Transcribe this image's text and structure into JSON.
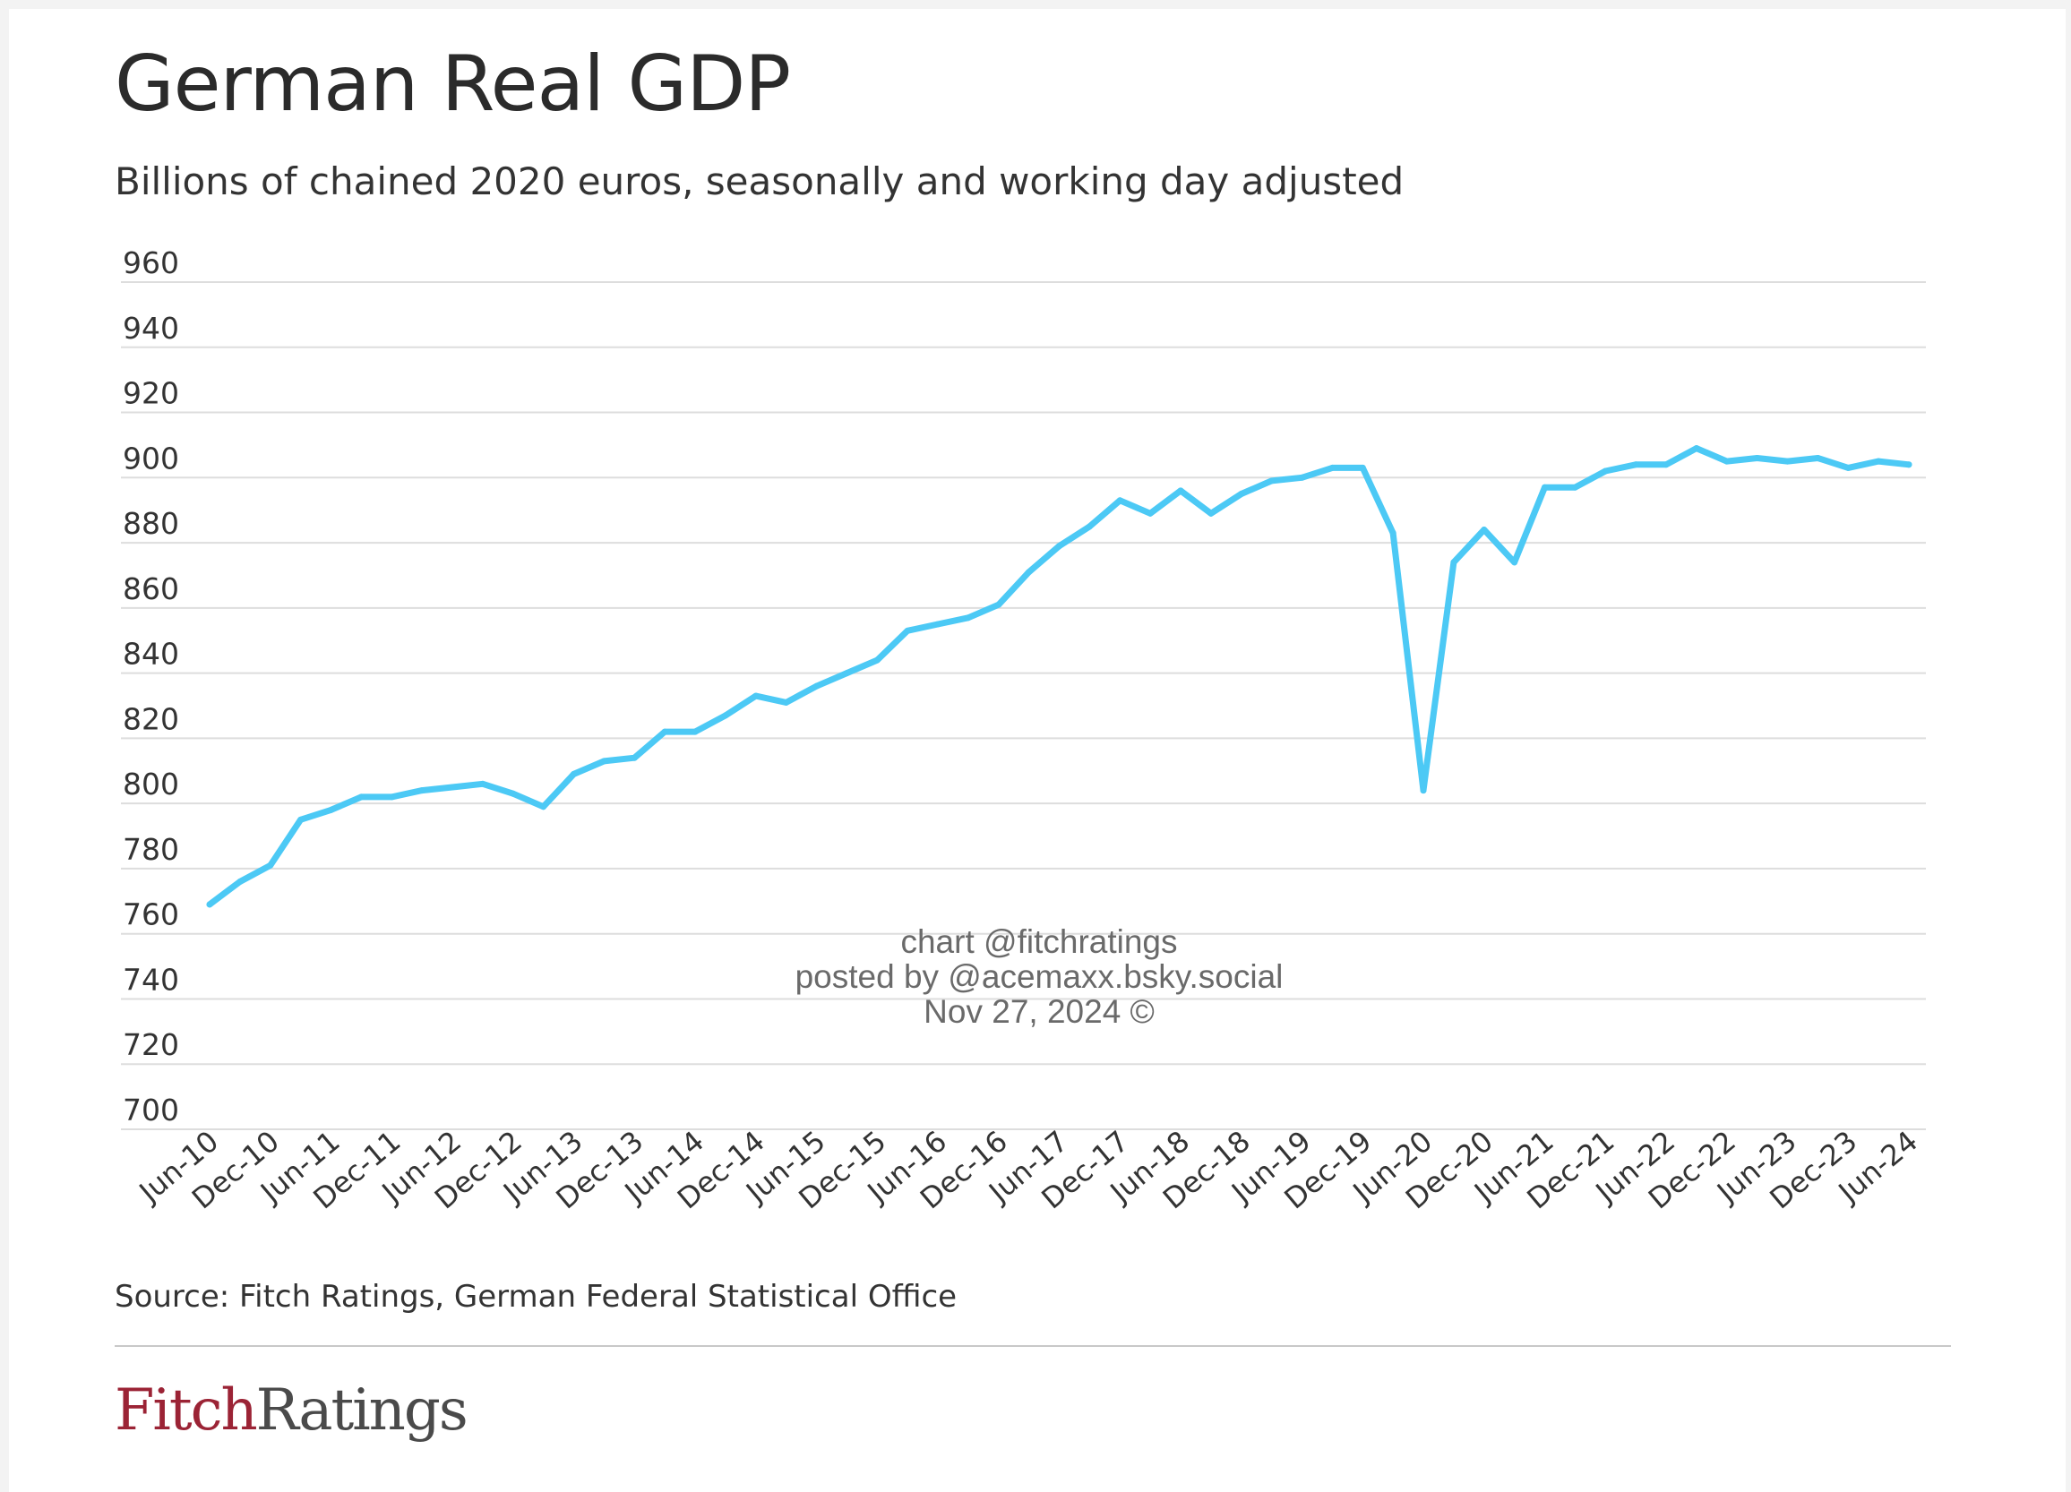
{
  "header": {
    "title": "German Real GDP",
    "subtitle": "Billions of chained 2020 euros, seasonally and working day adjusted"
  },
  "watermark": {
    "line1": "chart @fitchratings",
    "line2": "posted by @acemaxx.bsky.social",
    "line3": "Nov 27, 2024 ©"
  },
  "footer": {
    "source": "Source: Fitch Ratings, German Federal Statistical Office",
    "logo_part1": "Fitch",
    "logo_part2": "Ratings"
  },
  "colors": {
    "line": "#4cc9f5",
    "grid": "#dddddd",
    "text": "#333333",
    "logo_red": "#9b2335"
  },
  "chart_data": {
    "type": "line",
    "title": "German Real GDP",
    "subtitle": "Billions of chained 2020 euros, seasonally and working day adjusted",
    "ylim": [
      700,
      960
    ],
    "yticks": [
      700,
      720,
      740,
      760,
      780,
      800,
      820,
      840,
      860,
      880,
      900,
      920,
      940,
      960
    ],
    "xtick_labels": [
      "Jun-10",
      "Dec-10",
      "Jun-11",
      "Dec-11",
      "Jun-12",
      "Dec-12",
      "Jun-13",
      "Dec-13",
      "Jun-14",
      "Dec-14",
      "Jun-15",
      "Dec-15",
      "Jun-16",
      "Dec-16",
      "Jun-17",
      "Dec-17",
      "Jun-18",
      "Dec-18",
      "Jun-19",
      "Dec-19",
      "Jun-20",
      "Dec-20",
      "Jun-21",
      "Dec-21",
      "Jun-22",
      "Dec-22",
      "Jun-23",
      "Dec-23",
      "Jun-24"
    ],
    "grid": true,
    "legend": "none",
    "series": [
      {
        "x": [
          "Jun-10",
          "Sep-10",
          "Dec-10",
          "Mar-11",
          "Jun-11",
          "Sep-11",
          "Dec-11",
          "Mar-12",
          "Jun-12",
          "Sep-12",
          "Dec-12",
          "Mar-13",
          "Jun-13",
          "Sep-13",
          "Dec-13",
          "Mar-14",
          "Jun-14",
          "Sep-14",
          "Dec-14",
          "Mar-15",
          "Jun-15",
          "Sep-15",
          "Dec-15",
          "Mar-16",
          "Jun-16",
          "Sep-16",
          "Dec-16",
          "Mar-17",
          "Jun-17",
          "Sep-17",
          "Dec-17",
          "Mar-18",
          "Jun-18",
          "Sep-18",
          "Dec-18",
          "Mar-19",
          "Jun-19",
          "Sep-19",
          "Dec-19",
          "Mar-20",
          "Jun-20",
          "Sep-20",
          "Dec-20",
          "Mar-21",
          "Jun-21",
          "Sep-21",
          "Dec-21",
          "Mar-22",
          "Jun-22",
          "Sep-22",
          "Dec-22",
          "Mar-23",
          "Jun-23",
          "Sep-23",
          "Dec-23",
          "Mar-24",
          "Jun-24"
        ],
        "values": [
          769,
          776,
          781,
          795,
          798,
          802,
          802,
          804,
          805,
          806,
          803,
          799,
          809,
          813,
          814,
          822,
          822,
          827,
          833,
          831,
          836,
          840,
          844,
          853,
          855,
          857,
          861,
          871,
          879,
          885,
          893,
          889,
          896,
          889,
          895,
          899,
          900,
          903,
          903,
          883,
          804,
          874,
          884,
          874,
          897,
          897,
          902,
          904,
          904,
          909,
          905,
          906,
          905,
          906,
          903,
          905,
          904
        ]
      }
    ]
  }
}
